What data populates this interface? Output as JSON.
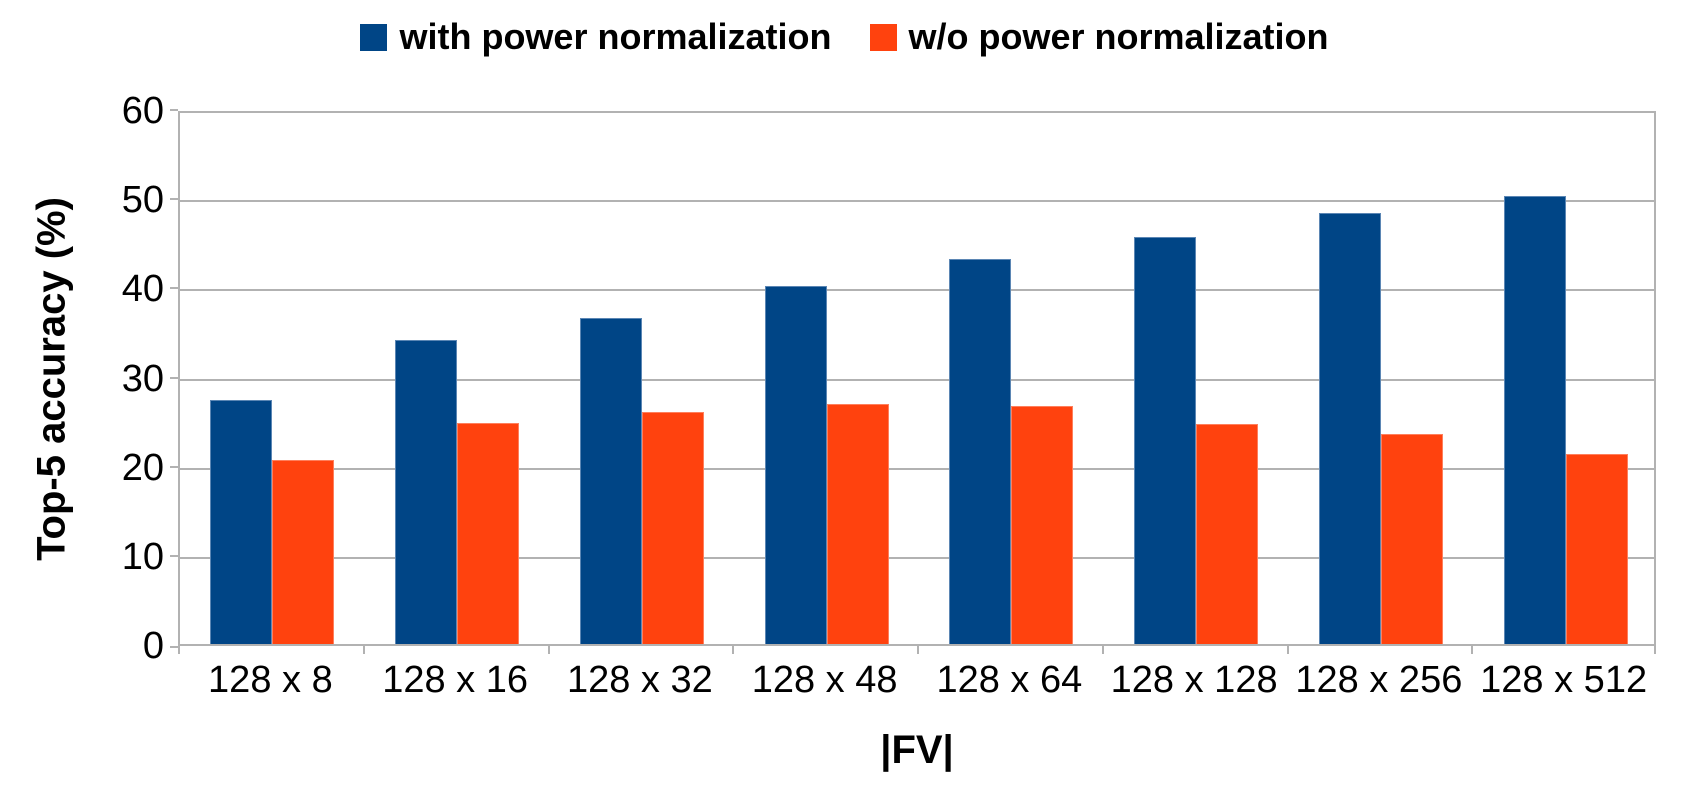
{
  "chart_data": {
    "type": "bar",
    "title": "",
    "xlabel": "|FV|",
    "ylabel": "Top-5 accuracy (%)",
    "categories": [
      "128 x 8",
      "128 x 16",
      "128 x 32",
      "128 x 48",
      "128 x 64",
      "128 x 128",
      "128 x 256",
      "128 x 512"
    ],
    "series": [
      {
        "name": "with power normalization",
        "color": "#004586",
        "border_color": "#5b86b4",
        "values": [
          27.4,
          34.1,
          36.6,
          40.2,
          43.2,
          45.7,
          48.3,
          50.3
        ]
      },
      {
        "name": "w/o power normalization",
        "color": "#FF420E",
        "border_color": "#ff7f5c",
        "values": [
          20.6,
          24.8,
          26.0,
          26.9,
          26.7,
          24.7,
          23.6,
          21.3
        ]
      }
    ],
    "ylim": [
      0,
      60
    ],
    "yticks": [
      0,
      10,
      20,
      30,
      40,
      50,
      60
    ],
    "grid": true,
    "legend_position": "top",
    "axis_color": "#b2b2b2",
    "text_color": "#000000",
    "background_color": "#ffffff"
  }
}
